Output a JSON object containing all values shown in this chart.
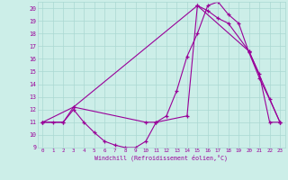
{
  "xlabel": "Windchill (Refroidissement éolien,°C)",
  "bg_color": "#cceee8",
  "grid_color": "#aad8d2",
  "line_color": "#990099",
  "xlim": [
    -0.5,
    23.5
  ],
  "ylim": [
    9,
    20.5
  ],
  "yticks": [
    9,
    10,
    11,
    12,
    13,
    14,
    15,
    16,
    17,
    18,
    19,
    20
  ],
  "xticks": [
    0,
    1,
    2,
    3,
    4,
    5,
    6,
    7,
    8,
    9,
    10,
    11,
    12,
    13,
    14,
    15,
    16,
    17,
    18,
    19,
    20,
    21,
    22,
    23
  ],
  "series1_x": [
    0,
    1,
    2,
    3,
    4,
    5,
    6,
    7,
    8,
    9,
    10,
    11,
    12,
    13,
    14,
    15,
    16,
    17,
    18,
    19,
    20,
    21,
    22,
    23
  ],
  "series1_y": [
    11,
    11,
    11,
    12,
    11,
    10.2,
    9.5,
    9.2,
    9.0,
    9.0,
    9.5,
    11,
    11.5,
    13.5,
    16.2,
    18.0,
    20.2,
    20.5,
    19.5,
    18.8,
    16.5,
    14.5,
    12.8,
    11
  ],
  "series2_x": [
    0,
    2,
    3,
    10,
    11,
    14,
    15,
    16,
    17,
    18,
    20,
    21,
    22,
    23
  ],
  "series2_y": [
    11,
    11,
    12.2,
    11,
    11,
    11.5,
    20.2,
    19.8,
    19.2,
    18.8,
    16.6,
    14.8,
    11,
    11
  ],
  "series3_x": [
    0,
    3,
    15,
    20,
    23
  ],
  "series3_y": [
    11,
    12.2,
    20.2,
    16.6,
    11
  ]
}
